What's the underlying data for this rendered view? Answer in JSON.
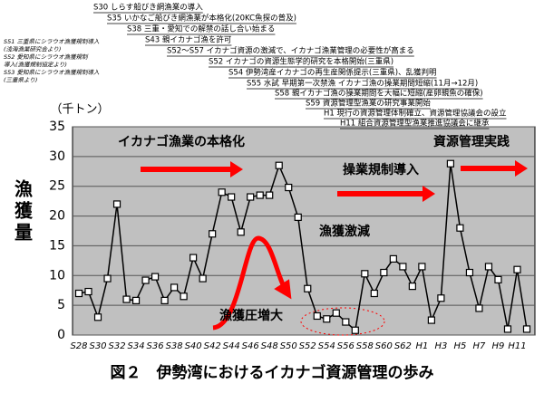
{
  "chart_data": {
    "type": "line",
    "title": "図２　伊勢湾におけるイカナゴ資源管理の歩み",
    "y_label": "漁獲量",
    "y_unit": "（千トン）",
    "categories": [
      "S28",
      null,
      "S30",
      null,
      "S32",
      null,
      "S34",
      null,
      "S36",
      null,
      "S38",
      null,
      "S40",
      null,
      "S42",
      null,
      "S44",
      null,
      "S46",
      null,
      "S48",
      null,
      "S50",
      null,
      "S52",
      null,
      "S54",
      null,
      "S56",
      null,
      "S58",
      null,
      "S60",
      null,
      "S62",
      null,
      "H1",
      null,
      "H3",
      null,
      "H5",
      null,
      "H7",
      null,
      "H9",
      null,
      "H11",
      null
    ],
    "series": [
      {
        "name": "漁獲量",
        "color": "#000000",
        "values": [
          7,
          7.3,
          3,
          9.5,
          22,
          6,
          5.8,
          9.2,
          9.8,
          5.8,
          8,
          6.5,
          13,
          9.5,
          17,
          24,
          23.2,
          17.3,
          23.2,
          23.5,
          23.5,
          28.5,
          24.8,
          19.8,
          7.8,
          3.2,
          2.7,
          3.7,
          2.2,
          0.8,
          10.3,
          7,
          10.5,
          12.8,
          11.5,
          8.2,
          11.5,
          2.5,
          6.2,
          28.8,
          18,
          10.5,
          4.5,
          11.5,
          9.3,
          1,
          11,
          1
        ]
      }
    ],
    "ylim": [
      0,
      35
    ],
    "yticks": [
      0,
      5,
      10,
      15,
      20,
      25,
      30,
      35
    ],
    "grid": true,
    "plot_background": "#c0c0c0",
    "chart_annotations": [
      "イカナゴ漁業の本格化",
      "資源管理実践",
      "操業規制導入",
      "漁獲激減",
      "漁獲圧増大"
    ],
    "timeline": [
      "S30 しらす船びき網漁業の導入",
      "S35 いかなご船びき網漁業が本格化(20KC魚探の普及)",
      "S38 三重・愛知での解禁の話し合い始まる",
      "S43 親イカナゴ漁を許可",
      "S52～S57 イカナゴ資源の激減で、イカナゴ漁業管理の必要性が高まる",
      "S52 イカナゴの資源生態学的研究を本格開始(三重県)",
      "S54 伊勢湾産イカナゴの再生産関係提示(三重県)、乱獲判明",
      "S55 水試 早期第一次禁漁 イカナゴ漁の操業期間短縮(11月→12月)",
      "S58 親イカナゴ漁の操業期間を大幅に短縮(産卵親魚の確保)",
      "S59 資源管理型漁業の研究事業開始",
      "H1 現行の資源管理体制確立、資源管理協議会の設立",
      "H11 組合資源管理型漁業推進協議会に継承"
    ],
    "side_notes": [
      "S51 三重県にシラウオ漁獲規制導入",
      "(浅海漁業研究会より)",
      "S52 愛知県にシラウオ漁獲規制",
      "導入(漁獲規制協定より)",
      "S53 愛知県にシラウオ漁獲規制導入",
      "(三重県より)"
    ]
  }
}
